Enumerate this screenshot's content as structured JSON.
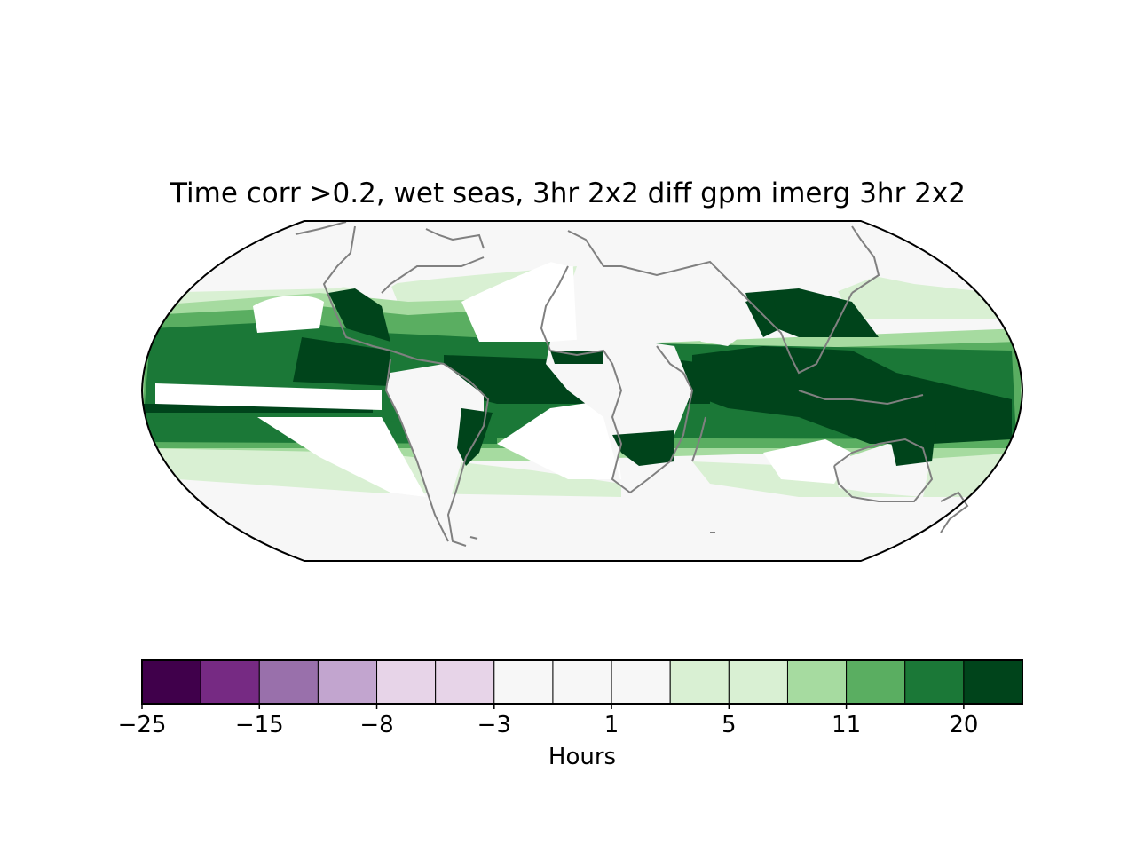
{
  "title": "Time corr >0.2, wet seas, 3hr 2x2 diff gpm imerg 3hr 2x2",
  "colorbar": {
    "label": "Hours",
    "tick_labels": [
      "−25",
      "−15",
      "−8",
      "−3",
      "1",
      "5",
      "11",
      "20"
    ],
    "colors": [
      "#40004b",
      "#762a83",
      "#9970ab",
      "#c2a5cf",
      "#e7d4e8",
      "#e7d4e8",
      "#f7f7f7",
      "#f7f7f7",
      "#f7f7f7",
      "#d9f0d3",
      "#d9f0d3",
      "#a6dba0",
      "#5aae61",
      "#1b7837",
      "#00441b"
    ]
  },
  "map": {
    "projection": "Robinson",
    "coastline_color": "#808080",
    "land_color": "#f7f7f7",
    "missing_color": "#ffffff"
  },
  "chart_data": {
    "type": "heatmap",
    "title": "Time corr >0.2, wet seas, 3hr 2x2 diff gpm imerg 3hr 2x2",
    "colorbar_label": "Hours",
    "colorbar_ticks": [
      -25,
      -15,
      -8,
      -3,
      1,
      5,
      11,
      20
    ],
    "grid": false
  }
}
